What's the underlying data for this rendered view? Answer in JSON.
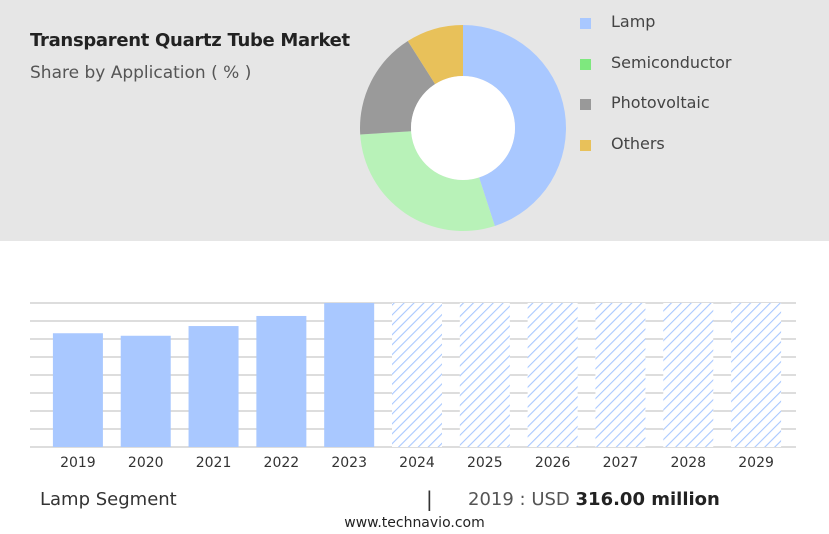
{
  "header": {
    "title": "Transparent Quartz Tube Market",
    "subtitle": "Share by Application ( % )"
  },
  "chart_data": [
    {
      "type": "pie",
      "subtype": "donut",
      "title": "Transparent Quartz Tube Market",
      "subtitle": "Share by Application ( % )",
      "legend_position": "right",
      "slices": [
        {
          "label": "Lamp",
          "value": 45,
          "color": "#a9c8ff"
        },
        {
          "label": "Semiconductor",
          "value": 29,
          "color": "#b8f2b8"
        },
        {
          "label": "Photovoltaic",
          "value": 17,
          "color": "#9a9a9a"
        },
        {
          "label": "Others",
          "value": 9,
          "color": "#e8c15a"
        }
      ]
    },
    {
      "type": "bar",
      "categories": [
        "2019",
        "2020",
        "2021",
        "2022",
        "2023",
        "2024",
        "2025",
        "2026",
        "2027",
        "2028",
        "2029"
      ],
      "values": [
        316,
        309,
        336,
        364,
        400,
        400,
        400,
        400,
        400,
        400,
        400
      ],
      "forecast_start_index": 5,
      "ylim": [
        0,
        400
      ],
      "grid": true,
      "colors": {
        "actual": "#a9c8ff",
        "forecast": "#a9c8ff",
        "grid": "#bbbbbb"
      }
    }
  ],
  "footer": {
    "segment_label": "Lamp Segment",
    "separator": "|",
    "value_prefix": "2019 : USD",
    "value_bold": "316.00 million",
    "source": "www.technavio.com"
  }
}
